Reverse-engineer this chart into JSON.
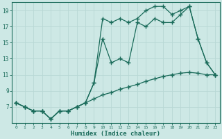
{
  "xlabel": "Humidex (Indice chaleur)",
  "bg_color": "#cde8e5",
  "grid_color": "#b8d8d5",
  "line_color": "#1a6b5a",
  "x_min": -0.5,
  "x_max": 23.5,
  "y_min": 5.0,
  "y_max": 20.0,
  "x_ticks": [
    0,
    1,
    2,
    3,
    4,
    5,
    6,
    7,
    8,
    9,
    10,
    11,
    12,
    13,
    14,
    15,
    16,
    17,
    18,
    19,
    20,
    21,
    22,
    23
  ],
  "y_ticks": [
    7,
    9,
    11,
    13,
    15,
    17,
    19
  ],
  "line1_x": [
    0,
    1,
    2,
    3,
    4,
    5,
    6,
    7,
    8,
    9,
    10,
    11,
    12,
    13,
    14,
    15,
    16,
    17,
    18,
    19,
    20,
    21,
    22,
    23
  ],
  "line1_y": [
    7.5,
    7.0,
    6.5,
    6.5,
    5.5,
    6.5,
    6.5,
    7.0,
    7.5,
    10.0,
    18.0,
    17.5,
    18.0,
    17.5,
    18.0,
    19.0,
    19.5,
    19.5,
    18.5,
    19.0,
    19.5,
    15.5,
    12.5,
    11.0
  ],
  "line2_x": [
    0,
    1,
    2,
    3,
    4,
    5,
    6,
    7,
    8,
    9,
    10,
    11,
    12,
    13,
    14,
    15,
    16,
    17,
    18,
    19,
    20,
    21,
    22,
    23
  ],
  "line2_y": [
    7.5,
    7.0,
    6.5,
    6.5,
    5.5,
    6.5,
    6.5,
    7.0,
    7.5,
    10.0,
    15.5,
    12.5,
    13.0,
    12.5,
    17.5,
    17.0,
    18.0,
    17.5,
    17.5,
    18.5,
    19.5,
    15.5,
    12.5,
    11.0
  ],
  "line3_x": [
    0,
    1,
    2,
    3,
    4,
    5,
    6,
    7,
    8,
    9,
    10,
    11,
    12,
    13,
    14,
    15,
    16,
    17,
    18,
    19,
    20,
    21,
    22,
    23
  ],
  "line3_y": [
    7.5,
    7.0,
    6.5,
    6.5,
    5.5,
    6.5,
    6.5,
    7.0,
    7.5,
    8.0,
    8.5,
    8.8,
    9.2,
    9.5,
    9.8,
    10.2,
    10.5,
    10.8,
    11.0,
    11.2,
    11.3,
    11.2,
    11.0,
    11.0
  ]
}
